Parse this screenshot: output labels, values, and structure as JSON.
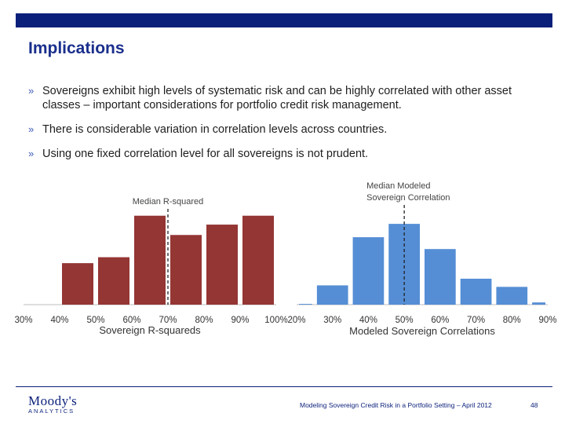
{
  "title": "Implications",
  "bullets": [
    {
      "mark": "»",
      "text": "Sovereigns exhibit high levels of systematic risk and can be highly correlated with other asset classes – important considerations for portfolio credit risk management."
    },
    {
      "mark": "»",
      "text": "There is considerable variation in correlation levels across countries."
    },
    {
      "mark": "»",
      "text": "Using one fixed correlation level for all sovereigns is not prudent."
    }
  ],
  "chart_data": [
    {
      "type": "bar",
      "xlabel": "Sovereign R-squareds",
      "ylabel": "",
      "tick_labels": [
        "30%",
        "40%",
        "50%",
        "60%",
        "70%",
        "80%",
        "90%",
        "100%"
      ],
      "x_range": [
        0.3,
        1.0
      ],
      "bins": [
        {
          "from": 0.4,
          "to": 0.5,
          "value": 5.6
        },
        {
          "from": 0.5,
          "to": 0.6,
          "value": 6.4
        },
        {
          "from": 0.6,
          "to": 0.7,
          "value": 12.0
        },
        {
          "from": 0.7,
          "to": 0.8,
          "value": 9.4
        },
        {
          "from": 0.8,
          "to": 0.9,
          "value": 10.8
        },
        {
          "from": 0.9,
          "to": 1.0,
          "value": 12.0
        }
      ],
      "ylim": [
        0,
        12.5
      ],
      "color": "#943634",
      "median": {
        "x": 0.7,
        "label": "Median R-squared"
      }
    },
    {
      "type": "bar",
      "xlabel": "Modeled Sovereign Correlations",
      "ylabel": "",
      "tick_labels": [
        "20%",
        "30%",
        "40%",
        "50%",
        "60%",
        "70%",
        "80%",
        "90%"
      ],
      "x_range": [
        0.2,
        0.9
      ],
      "bins": [
        {
          "from": 0.2,
          "to": 0.25,
          "value": 0.1
        },
        {
          "from": 0.25,
          "to": 0.35,
          "value": 2.6
        },
        {
          "from": 0.35,
          "to": 0.45,
          "value": 9.1
        },
        {
          "from": 0.45,
          "to": 0.55,
          "value": 10.9
        },
        {
          "from": 0.55,
          "to": 0.65,
          "value": 7.5
        },
        {
          "from": 0.65,
          "to": 0.75,
          "value": 3.5
        },
        {
          "from": 0.75,
          "to": 0.85,
          "value": 2.4
        },
        {
          "from": 0.85,
          "to": 0.9,
          "value": 0.3
        }
      ],
      "ylim": [
        0,
        12.5
      ],
      "color": "#558ed5",
      "median": {
        "x": 0.5,
        "label_lines": [
          "Median Modeled",
          "Sovereign Correlation"
        ]
      }
    }
  ],
  "footer": {
    "logo": "Moody's",
    "logo_sub": "ANALYTICS",
    "note": "Modeling Sovereign Credit Risk in a Portfolio Setting – April 2012",
    "page": "48"
  }
}
